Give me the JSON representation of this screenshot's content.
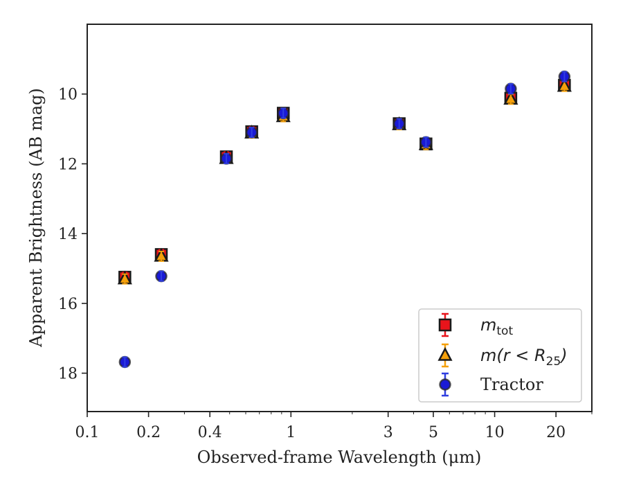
{
  "chart_data": {
    "type": "scatter",
    "xlabel": "Observed-frame Wavelength (μm)",
    "ylabel": "Apparent Brightness (AB mag)",
    "xscale": "log",
    "xlim": [
      0.1,
      30
    ],
    "ylim": [
      19.1,
      8.0
    ],
    "y_inverted": true,
    "xticks": [
      {
        "value": 0.1,
        "label": "0.1"
      },
      {
        "value": 0.2,
        "label": "0.2"
      },
      {
        "value": 0.4,
        "label": "0.4"
      },
      {
        "value": 1,
        "label": "1"
      },
      {
        "value": 3,
        "label": "3"
      },
      {
        "value": 5,
        "label": "5"
      },
      {
        "value": 10,
        "label": "10"
      },
      {
        "value": 20,
        "label": "20"
      }
    ],
    "yticks": [
      {
        "value": 10,
        "label": "10"
      },
      {
        "value": 12,
        "label": "12"
      },
      {
        "value": 14,
        "label": "14"
      },
      {
        "value": 16,
        "label": "16"
      },
      {
        "value": 18,
        "label": "18"
      }
    ],
    "legend_position": "lower-right",
    "series": [
      {
        "name": "m_tot",
        "legend_label": "m",
        "legend_sub": "tot",
        "marker": "square",
        "color": "#e8141b",
        "errorbar_color": "#e8141b",
        "x": [
          0.153,
          0.231,
          0.482,
          0.642,
          0.917,
          3.4,
          4.6,
          12.0,
          22.0
        ],
        "y": [
          15.25,
          14.6,
          11.8,
          11.08,
          10.55,
          10.85,
          11.43,
          10.12,
          9.75
        ]
      },
      {
        "name": "m(r < R_25)",
        "legend_label": "m(r < R",
        "legend_sub": "25",
        "legend_tail": ")",
        "marker": "triangle",
        "color": "#f5a00a",
        "errorbar_color": "#f5a00a",
        "x": [
          0.153,
          0.231,
          0.482,
          0.642,
          0.917,
          3.4,
          4.6,
          12.0,
          22.0
        ],
        "y": [
          15.3,
          14.65,
          11.85,
          11.12,
          10.65,
          10.88,
          11.45,
          10.15,
          9.78
        ]
      },
      {
        "name": "Tractor",
        "legend_label": "Tractor",
        "marker": "circle",
        "color": "#1a1ad6",
        "errorbar_color": "#2f3ee0",
        "x": [
          0.153,
          0.231,
          0.482,
          0.642,
          0.917,
          3.4,
          4.6,
          12.0,
          22.0
        ],
        "y": [
          17.68,
          15.22,
          11.85,
          11.1,
          10.55,
          10.85,
          11.38,
          9.85,
          9.5
        ]
      }
    ]
  }
}
